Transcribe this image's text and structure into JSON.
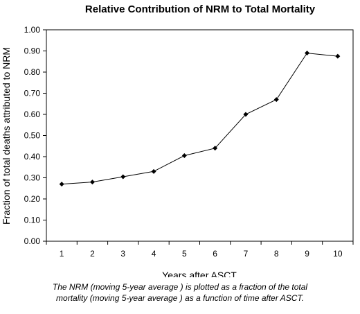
{
  "chart_data": {
    "type": "line",
    "title": "Relative Contribution of NRM to Total Mortality",
    "xlabel": "Years after ASCT",
    "ylabel": "Fraction of total deaths attributed to NRM",
    "categories": [
      "1",
      "2",
      "3",
      "4",
      "5",
      "6",
      "7",
      "8",
      "9",
      "10"
    ],
    "y_ticks": [
      "0.00",
      "0.10",
      "0.20",
      "0.30",
      "0.40",
      "0.50",
      "0.60",
      "0.70",
      "0.80",
      "0.90",
      "1.00"
    ],
    "ylim": [
      0,
      1
    ],
    "grid": false,
    "legend": "none",
    "series": [
      {
        "values": [
          0.27,
          0.28,
          0.305,
          0.33,
          0.405,
          0.44,
          0.6,
          0.67,
          0.89,
          0.875
        ],
        "color": "#000000",
        "marker": "diamond"
      }
    ]
  },
  "caption": {
    "line1": "The NRM (moving 5-year average ) is plotted as a fraction of the total",
    "line2": "mortality (moving 5-year average ) as a function of time after ASCT."
  }
}
